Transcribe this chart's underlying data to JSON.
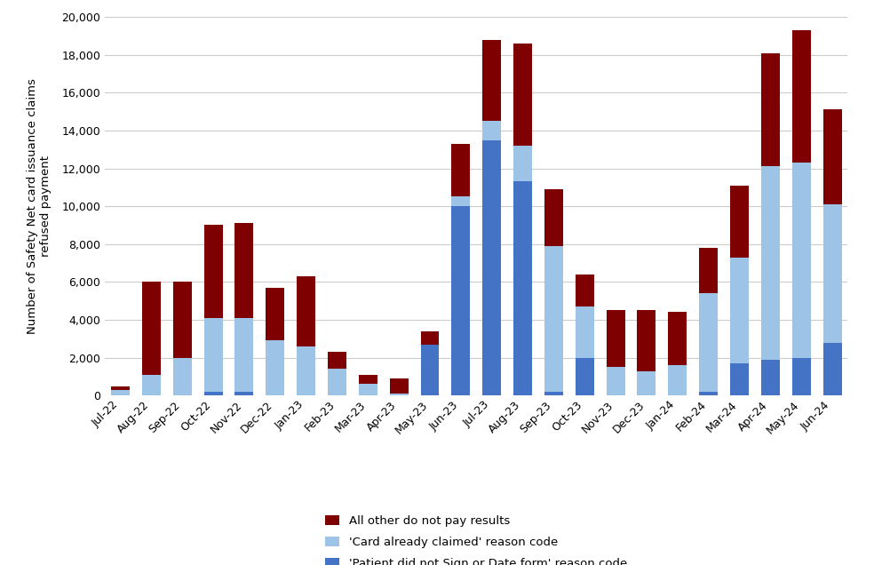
{
  "months": [
    "Jul-22",
    "Aug-22",
    "Sep-22",
    "Oct-22",
    "Nov-22",
    "Dec-22",
    "Jan-23",
    "Feb-23",
    "Mar-23",
    "Apr-23",
    "May-23",
    "Jun-23",
    "Jul-23",
    "Aug-23",
    "Sep-23",
    "Oct-23",
    "Nov-23",
    "Dec-23",
    "Jan-24",
    "Feb-24",
    "Mar-24",
    "Apr-24",
    "May-24",
    "Jun-24"
  ],
  "patient_did_not_sign": [
    0,
    0,
    0,
    200,
    200,
    0,
    0,
    0,
    0,
    0,
    2700,
    10000,
    13500,
    11300,
    200,
    2000,
    0,
    0,
    0,
    200,
    1700,
    1900,
    2000,
    2800
  ],
  "card_already_claimed": [
    300,
    1100,
    2000,
    3900,
    3900,
    2900,
    2600,
    1400,
    600,
    100,
    0,
    500,
    1000,
    1900,
    7700,
    2700,
    1500,
    1300,
    1600,
    5200,
    5600,
    10200,
    10300,
    7300
  ],
  "all_other": [
    200,
    4900,
    4000,
    4900,
    5000,
    2800,
    3700,
    900,
    500,
    800,
    700,
    2800,
    4300,
    5400,
    3000,
    1700,
    3000,
    3200,
    2800,
    2400,
    3800,
    6000,
    7000,
    5000
  ],
  "color_patient": "#4472C4",
  "color_card": "#9DC3E6",
  "color_other": "#7F0000",
  "ylabel": "Number of Safety Net card issuance claims\nrefused payment",
  "ylim": [
    0,
    20000
  ],
  "yticks": [
    0,
    2000,
    4000,
    6000,
    8000,
    10000,
    12000,
    14000,
    16000,
    18000,
    20000
  ],
  "legend_labels": [
    "All other do not pay results",
    "'Card already claimed' reason code",
    "'Patient did not Sign or Date form' reason code"
  ],
  "legend_colors": [
    "#7F0000",
    "#9DC3E6",
    "#4472C4"
  ],
  "bg_color": "#FFFFFF",
  "grid_color": "#CCCCCC"
}
